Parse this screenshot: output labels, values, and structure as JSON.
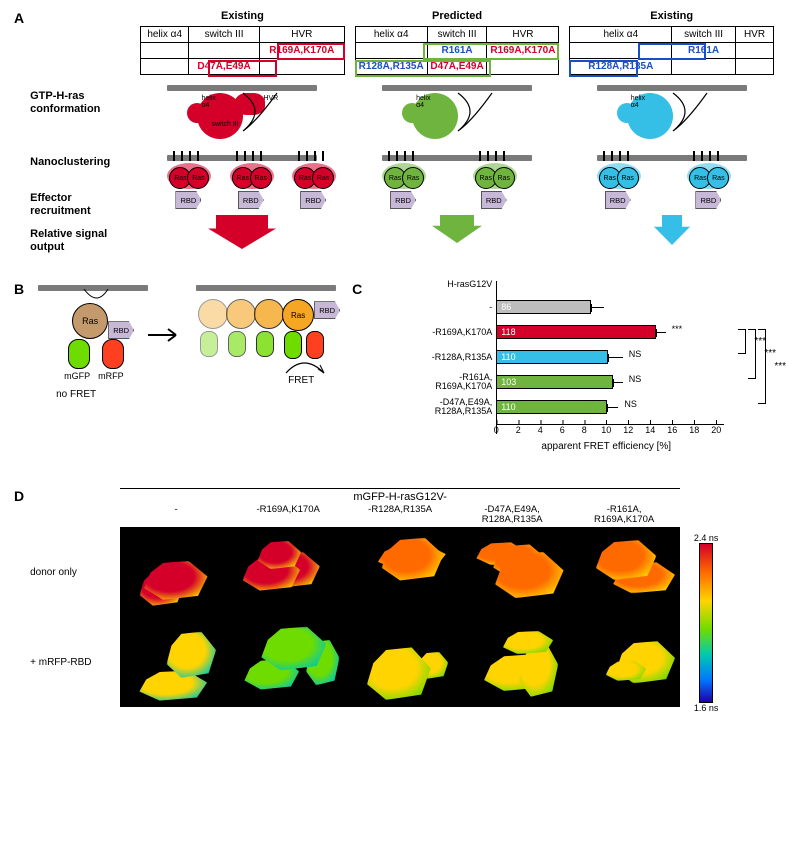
{
  "panelA": {
    "leftLabels": [
      "GTP-H-ras\nconformation",
      "Nanoclustering",
      "Effector\nrecruitment",
      "Relative signal\noutput"
    ],
    "columns": [
      {
        "title": "Existing",
        "color": "#d4002a",
        "headers": [
          "helix α4",
          "switch III",
          "HVR"
        ],
        "rows": [
          [
            "",
            "",
            "R169A,K170A"
          ],
          [
            "",
            "D47A,E49A",
            ""
          ]
        ],
        "boxCells": [
          {
            "r": 0,
            "c": 2,
            "color": "#d4002a"
          },
          {
            "r": 1,
            "c": 1,
            "color": "#d4002a"
          }
        ],
        "cellColors": {
          "0-2": "#d4002a",
          "1-1": "#d4002a"
        },
        "clusters": 3,
        "arrowW": 52,
        "arrowH": 30
      },
      {
        "title": "Predicted",
        "color": "#6eb43f",
        "headers": [
          "helix α4",
          "switch III",
          "HVR"
        ],
        "rows": [
          [
            "",
            "R161A",
            "R169A,K170A"
          ],
          [
            "R128A,R135A",
            "D47A,E49A",
            ""
          ]
        ],
        "boxCells": [
          {
            "r": 0,
            "c": 1,
            "span": 2,
            "color": "#6eb43f"
          },
          {
            "r": 1,
            "c": 0,
            "span": 2,
            "color": "#6eb43f"
          }
        ],
        "cellColors": {
          "0-1": "#1a4fc4",
          "0-2": "#d4002a",
          "1-0": "#1a4fc4",
          "1-1": "#d4002a"
        },
        "clusters": 2,
        "arrowW": 34,
        "arrowH": 24
      },
      {
        "title": "Existing",
        "color": "#35bfe6",
        "headers": [
          "helix α4",
          "switch III",
          "HVR"
        ],
        "rows": [
          [
            "",
            "R161A",
            ""
          ],
          [
            "R128A,R135A",
            "",
            ""
          ]
        ],
        "boxCells": [
          {
            "r": 0,
            "c": 1,
            "color": "#1a4fc4"
          },
          {
            "r": 1,
            "c": 0,
            "color": "#1a4fc4"
          }
        ],
        "cellColors": {
          "0-1": "#1a4fc4",
          "1-0": "#1a4fc4"
        },
        "clusters": 2,
        "arrowW": 20,
        "arrowH": 26
      }
    ]
  },
  "panelB": {
    "noFret": "no FRET",
    "fret": "FRET",
    "ras": "Ras",
    "mgfp": "mGFP",
    "mrfp": "mRFP",
    "rbd": "RBD",
    "colors": {
      "ras1": "#c49a6c",
      "ras2": "#f5a623",
      "mgfp": "#6fdc00",
      "mrfp": "#ff4020",
      "rbd": "#c8b8d8",
      "membrane": "#7a7a7a"
    }
  },
  "panelC": {
    "yLabelTop": "H-rasG12V",
    "labels": [
      "-",
      "-R169A,K170A",
      "-R128A,R135A",
      "-R161A,\nR169A,K170A",
      "-D47A,E49A,\nR128A,R135A"
    ],
    "n": [
      86,
      118,
      110,
      103,
      110
    ],
    "values": [
      8.6,
      14.5,
      10.2,
      10.6,
      10.1
    ],
    "errs": [
      1.2,
      0.9,
      1.3,
      0.9,
      1.0
    ],
    "colors": [
      "#bdbdbd",
      "#d4002a",
      "#35bfe6",
      "#6eb43f",
      "#6eb43f"
    ],
    "sig": [
      "",
      "***",
      "NS",
      "NS",
      "NS"
    ],
    "xTicks": [
      0,
      2,
      4,
      6,
      8,
      10,
      12,
      14,
      16,
      18,
      20
    ],
    "xLabel": "apparent FRET efficiency [%]",
    "xMax": 20,
    "bracketSig": "***"
  },
  "panelD": {
    "topLabel": "mGFP-H-rasG12V-",
    "colLabels": [
      "-",
      "-R169A,K170A",
      "-R128A,R135A",
      "-D47A,E49A,\nR128A,R135A",
      "-R161A,\nR169A,K170A"
    ],
    "rowLabels": [
      "donor only",
      "+ mRFP-RBD"
    ],
    "cbTop": "2.4 ns",
    "cbBot": "1.6 ns",
    "cellHues": [
      [
        0.1,
        0.08,
        0.14,
        0.14,
        0.13
      ],
      [
        0.4,
        0.55,
        0.35,
        0.32,
        0.34
      ]
    ]
  }
}
